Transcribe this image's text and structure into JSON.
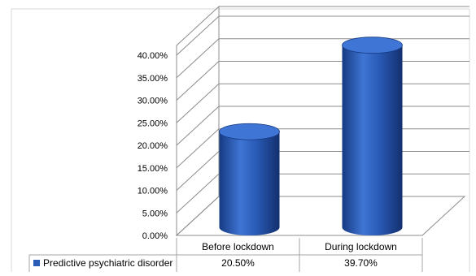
{
  "chart_data": {
    "type": "bar",
    "style": "3d-cylinder",
    "categories": [
      "Before lockdown",
      "During lockdown"
    ],
    "series": [
      {
        "name": "Predictive psychiatric disorder",
        "values": [
          20.5,
          39.7
        ],
        "value_labels": [
          "20.50%",
          "39.70%"
        ]
      }
    ],
    "y_ticks": [
      "0.00%",
      "5.00%",
      "10.00%",
      "15.00%",
      "20.00%",
      "25.00%",
      "30.00%",
      "35.00%",
      "40.00%"
    ],
    "ylim": [
      0,
      40
    ],
    "grid": true,
    "legend": "data-table-below",
    "colors": {
      "bar": "#2a5cb8",
      "bar_dark": "#163a82",
      "bar_top": "#3f75d4",
      "grid": "#8c8c8c"
    }
  }
}
